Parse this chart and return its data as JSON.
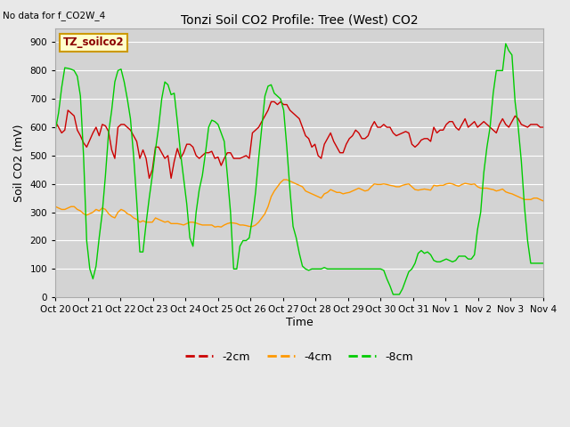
{
  "title": "Tonzi Soil CO2 Profile: Tree (West) CO2",
  "subtitle": "No data for f_CO2W_4",
  "ylabel": "Soil CO2 (mV)",
  "xlabel": "Time",
  "box_label": "TZ_soilco2",
  "ylim": [
    0,
    950
  ],
  "yticks": [
    0,
    100,
    200,
    300,
    400,
    500,
    600,
    700,
    800,
    900
  ],
  "xtick_labels": [
    "Oct 20",
    "Oct 21",
    "Oct 22",
    "Oct 23",
    "Oct 24",
    "Oct 25",
    "Oct 26",
    "Oct 27",
    "Oct 28",
    "Oct 29",
    "Oct 30",
    "Oct 31",
    "Nov 1",
    "Nov 2",
    "Nov 3",
    "Nov 4"
  ],
  "bg_color": "#e8e8e8",
  "plot_bg_color": "#d3d3d3",
  "legend_items": [
    {
      "label": "-2cm",
      "color": "#cc0000"
    },
    {
      "label": "-4cm",
      "color": "#ff9900"
    },
    {
      "label": "-8cm",
      "color": "#00cc00"
    }
  ],
  "line_red": [
    620,
    600,
    580,
    590,
    660,
    650,
    640,
    590,
    570,
    545,
    530,
    555,
    580,
    600,
    570,
    610,
    605,
    585,
    520,
    490,
    600,
    610,
    610,
    600,
    590,
    570,
    550,
    490,
    520,
    490,
    420,
    450,
    530,
    530,
    510,
    490,
    500,
    420,
    480,
    525,
    490,
    510,
    540,
    540,
    530,
    500,
    490,
    500,
    510,
    510,
    515,
    490,
    495,
    465,
    490,
    510,
    510,
    490,
    490,
    490,
    495,
    500,
    490,
    580,
    590,
    600,
    620,
    640,
    660,
    690,
    690,
    680,
    690,
    680,
    680,
    660,
    650,
    640,
    630,
    600,
    570,
    560,
    530,
    540,
    500,
    490,
    540,
    560,
    580,
    550,
    530,
    510,
    510,
    540,
    560,
    570,
    590,
    580,
    560,
    560,
    570,
    600,
    620,
    600,
    600,
    610,
    600,
    600,
    580,
    570,
    575,
    580,
    585,
    580,
    540,
    530,
    540,
    555,
    560,
    560,
    550,
    600,
    580,
    590,
    590,
    610,
    620,
    620,
    600,
    590,
    610,
    630,
    600,
    610,
    620,
    600,
    610,
    620,
    610,
    600,
    590,
    580,
    610,
    630,
    610,
    600,
    620,
    640,
    630,
    610,
    605,
    600,
    610,
    610,
    610,
    600,
    600
  ],
  "line_orange": [
    320,
    315,
    310,
    310,
    315,
    320,
    320,
    310,
    305,
    295,
    290,
    295,
    300,
    310,
    305,
    315,
    310,
    295,
    285,
    280,
    300,
    310,
    305,
    295,
    290,
    280,
    275,
    265,
    270,
    265,
    265,
    265,
    280,
    275,
    270,
    265,
    268,
    260,
    260,
    260,
    258,
    255,
    260,
    265,
    265,
    262,
    258,
    255,
    255,
    255,
    255,
    248,
    250,
    248,
    255,
    260,
    263,
    262,
    260,
    255,
    255,
    253,
    250,
    250,
    255,
    265,
    280,
    295,
    320,
    355,
    375,
    390,
    405,
    415,
    415,
    410,
    405,
    400,
    395,
    390,
    375,
    370,
    365,
    360,
    355,
    350,
    365,
    370,
    380,
    375,
    370,
    370,
    365,
    368,
    370,
    375,
    380,
    385,
    380,
    375,
    378,
    390,
    400,
    398,
    398,
    400,
    398,
    395,
    393,
    390,
    390,
    395,
    398,
    400,
    390,
    380,
    378,
    380,
    382,
    380,
    378,
    395,
    393,
    395,
    395,
    400,
    402,
    400,
    395,
    392,
    398,
    402,
    400,
    398,
    400,
    390,
    385,
    385,
    385,
    382,
    380,
    375,
    378,
    382,
    372,
    368,
    365,
    360,
    355,
    350,
    345,
    345,
    345,
    350,
    350,
    345,
    340
  ],
  "line_green": [
    590,
    650,
    740,
    810,
    808,
    805,
    800,
    780,
    710,
    500,
    200,
    100,
    65,
    110,
    210,
    300,
    430,
    580,
    660,
    760,
    800,
    805,
    760,
    700,
    630,
    500,
    340,
    160,
    160,
    260,
    350,
    430,
    520,
    600,
    700,
    760,
    750,
    715,
    720,
    620,
    510,
    420,
    330,
    210,
    180,
    300,
    380,
    430,
    510,
    600,
    625,
    620,
    610,
    580,
    550,
    430,
    300,
    100,
    100,
    180,
    200,
    200,
    210,
    280,
    370,
    490,
    600,
    710,
    745,
    750,
    720,
    710,
    700,
    660,
    530,
    380,
    250,
    210,
    155,
    110,
    100,
    95,
    100,
    100,
    100,
    100,
    105,
    100,
    100,
    100,
    100,
    100,
    100,
    100,
    100,
    100,
    100,
    100,
    100,
    100,
    100,
    100,
    100,
    100,
    100,
    95,
    65,
    40,
    10,
    10,
    10,
    30,
    60,
    90,
    100,
    120,
    155,
    165,
    155,
    160,
    150,
    130,
    125,
    125,
    130,
    135,
    130,
    125,
    130,
    145,
    145,
    145,
    135,
    135,
    150,
    240,
    300,
    440,
    530,
    600,
    720,
    800,
    800,
    800,
    895,
    870,
    855,
    690,
    600,
    480,
    320,
    200,
    120,
    120,
    120,
    120,
    120
  ]
}
